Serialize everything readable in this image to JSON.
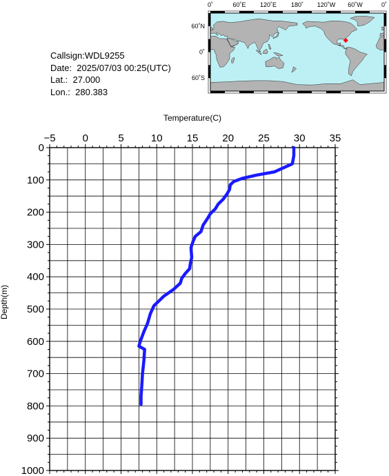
{
  "info": {
    "callsign": "Callsign:WDL9255",
    "date": "Date:  2025/07/03 00:25(UTC)",
    "lat": "Lat.:  27.000",
    "lon": "Lon.:  280.383"
  },
  "map": {
    "lon_labels": [
      "0˚",
      "60˚E",
      "120˚E",
      "180˚",
      "120˚W",
      "60˚W",
      "0˚"
    ],
    "lat_labels": [
      "60˚N",
      "0˚",
      "60˚S"
    ],
    "ocean_color": "#bdf0f5",
    "land_color": "#b3b3b3",
    "marker_color": "#ff0000",
    "station": {
      "lat": 27.0,
      "lon": 280.383
    }
  },
  "chart_data": {
    "type": "line",
    "xlabel": "Temperature(C)",
    "ylabel": "Depth(m)",
    "xlim": [
      -5,
      35
    ],
    "ylim": [
      0,
      1000
    ],
    "y_inverted": true,
    "x_ticks": [
      -5,
      0,
      5,
      10,
      15,
      20,
      25,
      30,
      35
    ],
    "y_ticks": [
      0,
      100,
      200,
      300,
      400,
      500,
      600,
      700,
      800,
      900,
      1000
    ],
    "x_ticks_text": [
      "−5",
      "0",
      "5",
      "10",
      "15",
      "20",
      "25",
      "30",
      "35"
    ],
    "y_ticks_text": [
      "0",
      "100",
      "200",
      "300",
      "400",
      "500",
      "600",
      "700",
      "800",
      "900",
      "1000"
    ],
    "grid": true,
    "line_color": "#1a1aff",
    "series": [
      {
        "x": [
          29.2,
          29.2,
          29.0,
          26.5,
          24.0,
          22.0,
          20.8,
          20.3,
          20.2,
          19.8,
          19.3,
          18.6,
          18.2,
          17.5,
          17.1,
          16.5,
          16.2,
          15.4,
          15.1,
          14.8,
          14.9,
          14.7,
          14.6,
          14.0,
          13.5,
          13.3,
          12.3,
          11.0,
          10.3,
          9.6,
          9.1,
          8.7,
          8.2,
          7.7,
          7.5,
          8.3,
          8.2,
          8.0,
          7.9,
          7.8,
          7.8
        ],
        "y": [
          0,
          25,
          50,
          75,
          85,
          95,
          105,
          115,
          130,
          145,
          160,
          175,
          190,
          205,
          220,
          240,
          260,
          275,
          290,
          310,
          340,
          360,
          375,
          390,
          405,
          420,
          440,
          460,
          475,
          490,
          515,
          545,
          570,
          600,
          615,
          625,
          660,
          700,
          740,
          770,
          795
        ]
      }
    ]
  }
}
